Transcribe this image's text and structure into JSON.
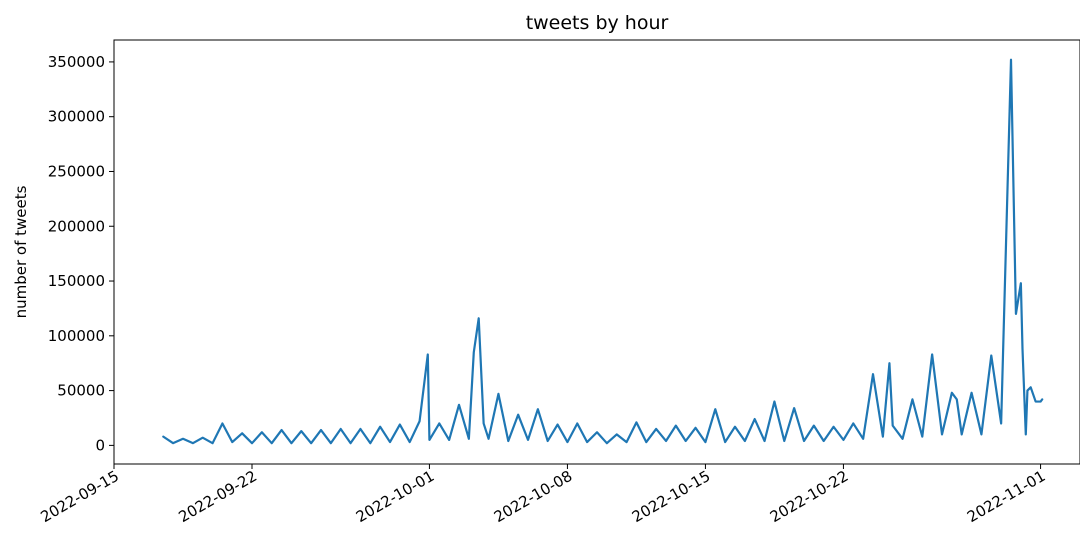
{
  "chart_data": {
    "type": "line",
    "title": "tweets by hour",
    "xlabel": "",
    "ylabel": "number of tweets",
    "xlim": [
      "2022-09-15",
      "2022-11-03"
    ],
    "ylim": [
      -17000,
      370000
    ],
    "grid": false,
    "line_color": "#1f77b4",
    "x_ticks": [
      "2022-09-15",
      "2022-09-22",
      "2022-10-01",
      "2022-10-08",
      "2022-10-15",
      "2022-10-22",
      "2022-11-01"
    ],
    "y_ticks": [
      0,
      50000,
      100000,
      150000,
      200000,
      250000,
      300000,
      350000
    ],
    "series": [
      {
        "name": "",
        "x": [
          "2022-09-17T12:00",
          "2022-09-18T00:00",
          "2022-09-18T12:00",
          "2022-09-19T00:00",
          "2022-09-19T12:00",
          "2022-09-20T00:00",
          "2022-09-20T12:00",
          "2022-09-21T00:00",
          "2022-09-21T12:00",
          "2022-09-22T00:00",
          "2022-09-22T12:00",
          "2022-09-23T00:00",
          "2022-09-23T12:00",
          "2022-09-24T00:00",
          "2022-09-24T12:00",
          "2022-09-25T00:00",
          "2022-09-25T12:00",
          "2022-09-26T00:00",
          "2022-09-26T12:00",
          "2022-09-27T00:00",
          "2022-09-27T12:00",
          "2022-09-28T00:00",
          "2022-09-28T12:00",
          "2022-09-29T00:00",
          "2022-09-29T12:00",
          "2022-09-30T00:00",
          "2022-09-30T12:00",
          "2022-09-30T22:00",
          "2022-10-01T00:00",
          "2022-10-01T12:00",
          "2022-10-02T00:00",
          "2022-10-02T12:00",
          "2022-10-03T00:00",
          "2022-10-03T06:00",
          "2022-10-03T12:00",
          "2022-10-03T18:00",
          "2022-10-04T00:00",
          "2022-10-04T12:00",
          "2022-10-05T00:00",
          "2022-10-05T12:00",
          "2022-10-06T00:00",
          "2022-10-06T12:00",
          "2022-10-07T00:00",
          "2022-10-07T12:00",
          "2022-10-08T00:00",
          "2022-10-08T12:00",
          "2022-10-09T00:00",
          "2022-10-09T12:00",
          "2022-10-10T00:00",
          "2022-10-10T12:00",
          "2022-10-11T00:00",
          "2022-10-11T12:00",
          "2022-10-12T00:00",
          "2022-10-12T12:00",
          "2022-10-13T00:00",
          "2022-10-13T12:00",
          "2022-10-14T00:00",
          "2022-10-14T12:00",
          "2022-10-15T00:00",
          "2022-10-15T12:00",
          "2022-10-16T00:00",
          "2022-10-16T12:00",
          "2022-10-17T00:00",
          "2022-10-17T12:00",
          "2022-10-18T00:00",
          "2022-10-18T12:00",
          "2022-10-19T00:00",
          "2022-10-19T12:00",
          "2022-10-20T00:00",
          "2022-10-20T12:00",
          "2022-10-21T00:00",
          "2022-10-21T12:00",
          "2022-10-22T00:00",
          "2022-10-22T12:00",
          "2022-10-23T00:00",
          "2022-10-23T12:00",
          "2022-10-24T00:00",
          "2022-10-24T08:00",
          "2022-10-24T12:00",
          "2022-10-25T00:00",
          "2022-10-25T12:00",
          "2022-10-26T00:00",
          "2022-10-26T12:00",
          "2022-10-27T00:00",
          "2022-10-27T12:00",
          "2022-10-27T18:00",
          "2022-10-28T00:00",
          "2022-10-28T12:00",
          "2022-10-29T00:00",
          "2022-10-29T12:00",
          "2022-10-30T00:00",
          "2022-10-30T12:00",
          "2022-10-30T18:00",
          "2022-10-31T00:00",
          "2022-10-31T02:00",
          "2022-10-31T06:00",
          "2022-10-31T08:00",
          "2022-10-31T12:00",
          "2022-10-31T18:00",
          "2022-11-01T00:00",
          "2022-11-01T02:00"
        ],
        "y": [
          8000,
          2000,
          6000,
          2000,
          7000,
          2000,
          20000,
          3000,
          11000,
          2000,
          12000,
          2000,
          14000,
          2000,
          13000,
          2000,
          14000,
          2000,
          15000,
          2000,
          15000,
          2000,
          17000,
          3000,
          19000,
          3000,
          22000,
          83000,
          5000,
          20000,
          5000,
          37000,
          6000,
          85000,
          116000,
          20000,
          6000,
          47000,
          4000,
          28000,
          5000,
          33000,
          4000,
          19000,
          3000,
          20000,
          3000,
          12000,
          2000,
          10000,
          3000,
          21000,
          3000,
          15000,
          4000,
          18000,
          4000,
          16000,
          3000,
          33000,
          3000,
          17000,
          4000,
          24000,
          4000,
          40000,
          4000,
          34000,
          4000,
          18000,
          4000,
          17000,
          5000,
          20000,
          6000,
          65000,
          8000,
          75000,
          18000,
          6000,
          42000,
          8000,
          83000,
          10000,
          48000,
          42000,
          10000,
          48000,
          10000,
          82000,
          20000,
          352000,
          120000,
          148000,
          88000,
          10000,
          50000,
          53000,
          40000,
          40000,
          42000
        ]
      }
    ]
  }
}
